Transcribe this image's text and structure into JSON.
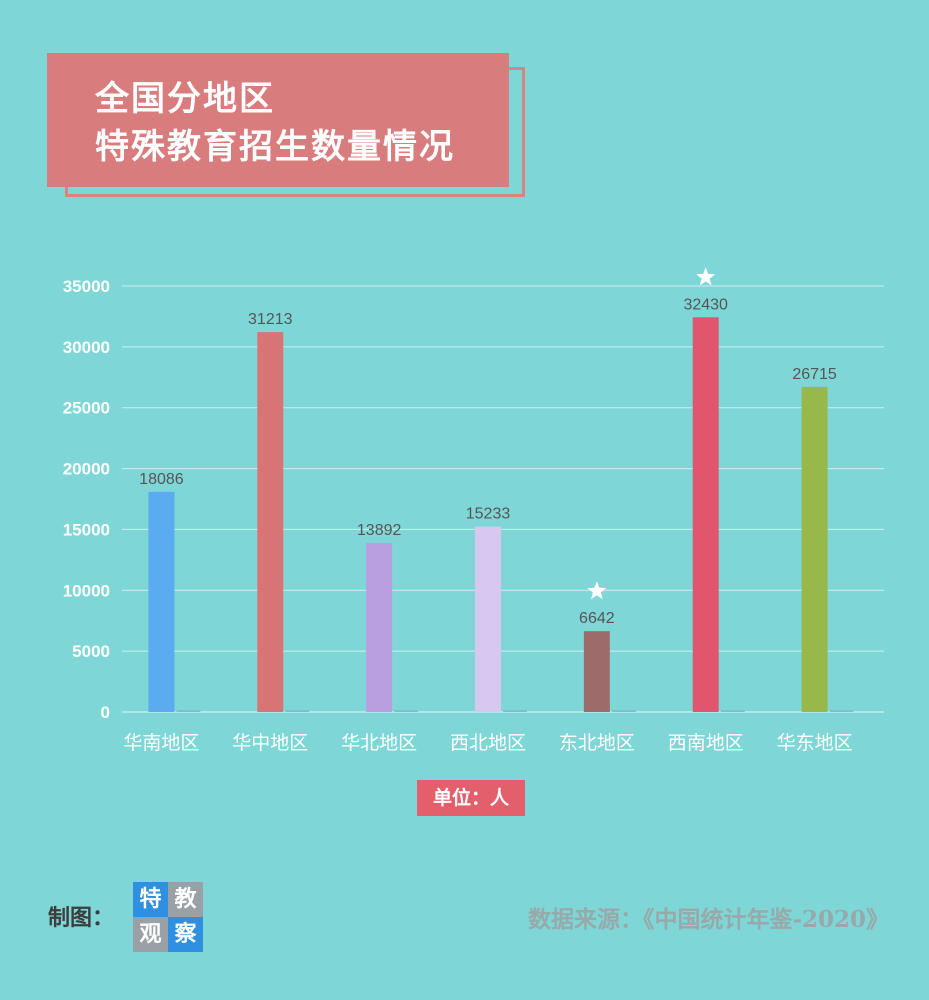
{
  "title": {
    "line1": "全国分地区",
    "line2": "特殊教育招生数量情况"
  },
  "unit_label": "单位：人",
  "maker_label": "制图：",
  "logo": {
    "chars": [
      "特",
      "教",
      "观",
      "察"
    ],
    "colors": [
      "#2f8fe0",
      "#9aa0a6",
      "#9aa0a6",
      "#2f8fe0"
    ]
  },
  "source": "数据来源：《中国统计年鉴-2020》",
  "colors": {
    "background": "#7fd6d7",
    "title_box": "#d97c7d",
    "unit_badge": "#e35f6c"
  },
  "chart_data": {
    "type": "bar",
    "categories": [
      "华南地区",
      "华中地区",
      "华北地区",
      "西北地区",
      "东北地区",
      "西南地区",
      "华东地区"
    ],
    "values": [
      18086,
      31213,
      13892,
      15233,
      6642,
      32430,
      26715
    ],
    "colors": [
      "#5aabf0",
      "#d97476",
      "#b99ee0",
      "#d6c8f0",
      "#9c6b6a",
      "#e0566c",
      "#98b84a"
    ],
    "data_labels": [
      "18086",
      "31213",
      "13892",
      "15233",
      "6642",
      "32430",
      "26715"
    ],
    "starred": [
      false,
      false,
      false,
      false,
      true,
      true,
      false
    ],
    "ylim": [
      0,
      35000
    ],
    "yticks": [
      0,
      5000,
      10000,
      15000,
      20000,
      25000,
      30000,
      35000
    ],
    "ytick_labels": [
      "0",
      "5000",
      "10000",
      "15000",
      "20000",
      "25000",
      "30000",
      "35000"
    ],
    "grid": true,
    "legend": "none",
    "title": "",
    "xlabel": "",
    "ylabel": ""
  }
}
